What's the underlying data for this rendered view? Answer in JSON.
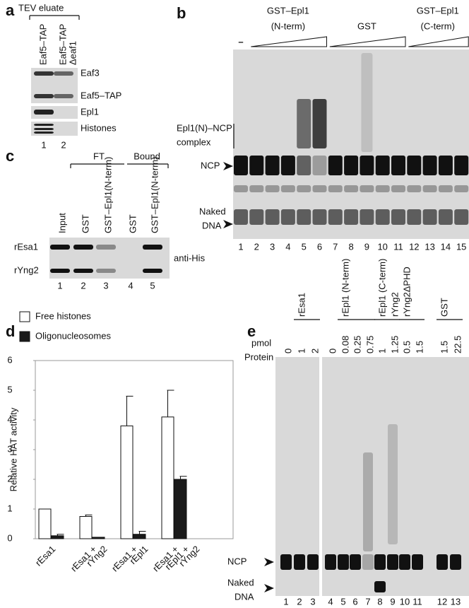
{
  "panel_a": {
    "label": "a",
    "header": "TEV eluate",
    "lanes": [
      [
        "Eaf5–TAP"
      ],
      [
        "Eaf5–TAP",
        "Δeaf1"
      ]
    ],
    "bands": [
      "Eaf3",
      "Eaf5–TAP",
      "Epl1",
      "Histones"
    ],
    "lane_numbers": [
      "1",
      "2"
    ]
  },
  "panel_b": {
    "label": "b",
    "control": "–",
    "groups": [
      [
        "GST–Epl1",
        "(N-term)"
      ],
      [
        "GST"
      ],
      [
        "GST–Epl1",
        "(C-term)"
      ]
    ],
    "complex": [
      "Epl1(N)–NCP",
      "complex"
    ],
    "ncp": "NCP",
    "naked": [
      "Naked",
      "DNA"
    ],
    "lane_numbers": [
      "1",
      "2",
      "3",
      "4",
      "5",
      "6",
      "7",
      "8",
      "9",
      "10",
      "11",
      "12",
      "13",
      "14",
      "15"
    ]
  },
  "panel_c": {
    "label": "c",
    "groups": [
      "FT",
      "Bound"
    ],
    "lanes": [
      "Input",
      "GST",
      "GST–Epl1(N-term)",
      "GST",
      "GST–Epl1(N-term)"
    ],
    "bands": [
      "rEsa1",
      "rYng2"
    ],
    "antibody": "anti-His",
    "lane_numbers": [
      "1",
      "2",
      "3",
      "4",
      "5"
    ]
  },
  "panel_e": {
    "label": "e",
    "row_labels": [
      "pmol",
      "Protein"
    ],
    "proteins": [
      "rEsa1",
      "rEpl1 (N-term)",
      "rEpl1 (C-term)",
      "rYng2",
      "rYng2ΔPHD",
      "GST"
    ],
    "amounts": [
      "0",
      "1",
      "2",
      "0",
      "0.08",
      "0.25",
      "0.75",
      "1",
      "1.25",
      "0.5",
      "1.5",
      "1.5",
      "22.5"
    ],
    "ncp": "NCP",
    "naked": [
      "Naked",
      "DNA"
    ],
    "lane_numbers": [
      "1",
      "2",
      "3",
      "4",
      "5",
      "6",
      "7",
      "8",
      "9",
      "10",
      "11",
      "12",
      "13"
    ]
  },
  "chart_data": {
    "type": "bar",
    "label": "d",
    "ylabel": "Relative HAT activity",
    "categories": [
      [
        "rEsa1"
      ],
      [
        "rEsa1 +",
        "rYng2"
      ],
      [
        "rEsa1 +",
        "rEpl1"
      ],
      [
        "rEsa1 +",
        "rEpl1 +",
        "rYng2"
      ]
    ],
    "series": [
      {
        "name": "Free histones",
        "color": "#ffffff",
        "values": [
          1,
          0.75,
          3.8,
          4.1
        ],
        "errors": [
          0,
          0.05,
          1.0,
          0.9
        ]
      },
      {
        "name": "Oligonucleosomes",
        "color": "#1a1a1a",
        "values": [
          0.1,
          0.05,
          0.15,
          2.0
        ],
        "errors": [
          0.05,
          0,
          0.1,
          0.1
        ]
      }
    ],
    "ylim": [
      0,
      6
    ],
    "yticks": [
      0,
      1,
      2,
      3,
      4,
      5,
      6
    ]
  }
}
